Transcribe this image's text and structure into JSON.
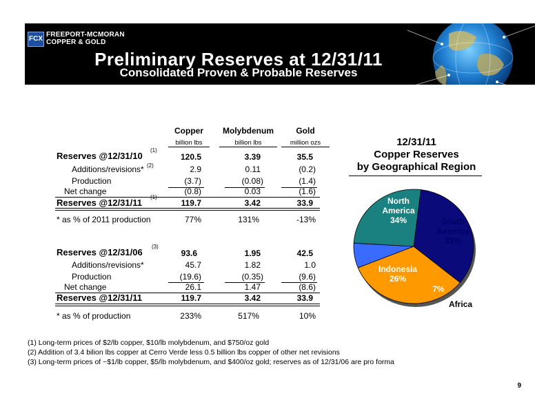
{
  "header": {
    "logo_mark": "FCX",
    "logo_line1": "FREEPORT-MCMORAN",
    "logo_line2": "COPPER & GOLD",
    "title": "Preliminary Reserves at 12/31/11",
    "subtitle": "Consolidated Proven & Probable Reserves"
  },
  "table": {
    "columns": [
      {
        "name": "Copper",
        "unit": "billion lbs"
      },
      {
        "name": "Molybdenum",
        "unit": "billion lbs"
      },
      {
        "name": "Gold",
        "unit": "million ozs"
      }
    ],
    "section1": {
      "start_label": "Reserves @12/31/10",
      "start_note": "(1)",
      "start_values": [
        "120.5",
        "3.39",
        "35.5"
      ],
      "add_label": "Additions/revisions*",
      "add_note": "(2)",
      "add_values": [
        "2.9",
        "0.11",
        "(0.2)"
      ],
      "prod_label": "Production",
      "prod_values": [
        "(3.7)",
        "(0.08)",
        "(1.4)"
      ],
      "net_label": "Net change",
      "net_values": [
        "(0.8)",
        "0.03",
        "(1.6)"
      ],
      "end_label": "Reserves @12/31/11",
      "end_note": "(1)",
      "end_values": [
        "119.7",
        "3.42",
        "33.9"
      ],
      "pct_label": "* as % of 2011 production",
      "pct_values": [
        "77%",
        "131%",
        "-13%"
      ]
    },
    "section2": {
      "start_label": "Reserves @12/31/06",
      "start_note": "(3)",
      "start_values": [
        "93.6",
        "1.95",
        "42.5"
      ],
      "add_label": "Additions/revisions*",
      "add_values": [
        "45.7",
        "1.82",
        "1.0"
      ],
      "prod_label": "Production",
      "prod_values": [
        "(19.6)",
        "(0.35)",
        "(9.6)"
      ],
      "net_label": "Net change",
      "net_values": [
        "26.1",
        "1.47",
        "(8.6)"
      ],
      "end_label": "Reserves @12/31/11",
      "end_values": [
        "119.7",
        "3.42",
        "33.9"
      ],
      "pct_label": "* as % of production",
      "pct_values": [
        "233%",
        "517%",
        "10%"
      ]
    }
  },
  "footnotes": [
    "(1) Long-term prices of $2/lb copper, $10/lb molybdenum, and $750/oz gold",
    "(2) Addition of 3.4 bilion lbs copper at Cerro Verde less 0.5 billion lbs copper of other net revisions",
    "(3) Long-term prices of ~$1/lb copper, $5/lb molybdenum, and $400/oz gold; reserves as of 12/31/06 are pro forma"
  ],
  "page_number": "9",
  "chart_data": {
    "type": "pie",
    "title_lines": [
      "12/31/11",
      "Copper Reserves",
      "by Geographical Region"
    ],
    "slices": [
      {
        "label_lines": [
          "North",
          "America"
        ],
        "value": 34,
        "value_label": "34%",
        "color": "#0a0a7a",
        "text_color": "#ffffff"
      },
      {
        "label_lines": [
          "South",
          "America"
        ],
        "value": 33,
        "value_label": "33%",
        "color": "#ff9900",
        "text_color": "#000066"
      },
      {
        "label_lines": [
          "Africa"
        ],
        "value": 7,
        "value_label": "7%",
        "color": "#3a6bff",
        "text_color": "#ffffff"
      },
      {
        "label_lines": [
          "Indonesia"
        ],
        "value": 26,
        "value_label": "26%",
        "color": "#1a8080",
        "text_color": "#ffffff"
      }
    ]
  }
}
